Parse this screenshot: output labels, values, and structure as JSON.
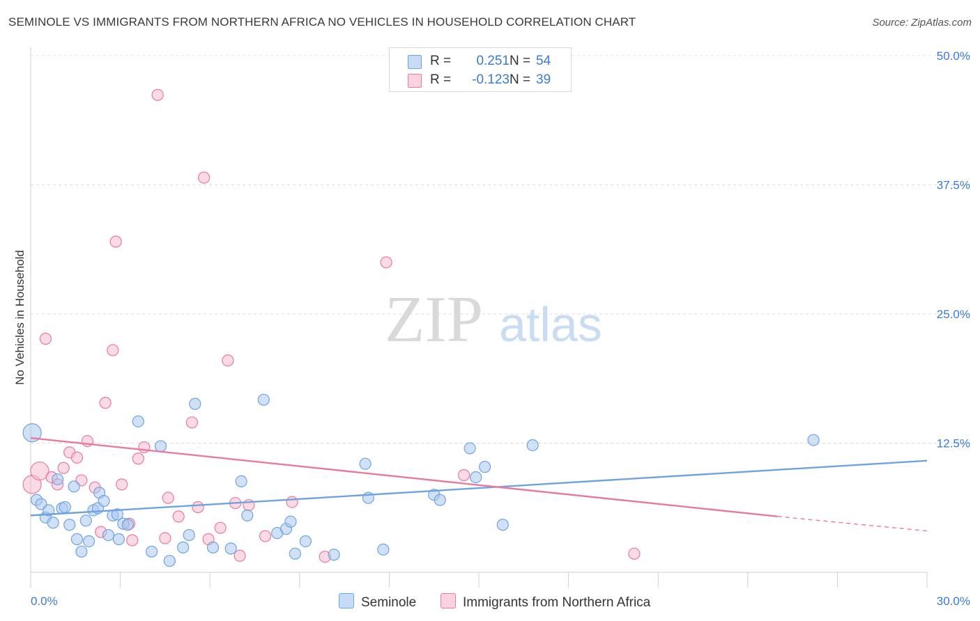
{
  "title": "SEMINOLE VS IMMIGRANTS FROM NORTHERN AFRICA NO VEHICLES IN HOUSEHOLD CORRELATION CHART",
  "source": "Source: ZipAtlas.com",
  "watermark": {
    "zip": "ZIP",
    "atlas": "atlas"
  },
  "legend": {
    "rows": [
      {
        "r_label": "R =",
        "r_value": "0.251",
        "n_label": "N =",
        "n_value": "54",
        "color": "#a9c8ef"
      },
      {
        "r_label": "R =",
        "r_value": "-0.123",
        "n_label": "N =",
        "n_value": "39",
        "color": "#f6bccd"
      }
    ]
  },
  "bottom_legend": [
    {
      "label": "Seminole",
      "color": "#a9c8ef"
    },
    {
      "label": "Immigrants from Northern Africa",
      "color": "#f6bccd"
    }
  ],
  "chart_data": {
    "type": "scatter",
    "title": "SEMINOLE VS IMMIGRANTS FROM NORTHERN AFRICA NO VEHICLES IN HOUSEHOLD CORRELATION CHART",
    "ylabel": "No Vehicles in Household",
    "xlabel": "",
    "xlim": [
      0,
      30
    ],
    "ylim": [
      0,
      50
    ],
    "x_tick_labels": [
      "0.0%",
      "30.0%"
    ],
    "y_tick_labels": [
      "12.5%",
      "25.0%",
      "37.5%",
      "50.0%"
    ],
    "y_ticks": [
      12.5,
      25.0,
      37.5,
      50.0
    ],
    "grid": true,
    "legend_position": "top-center",
    "series": [
      {
        "name": "Seminole",
        "color": "#6fa3e0",
        "fill": "#a9c8ef",
        "trend": {
          "x0": 0,
          "y0": 5.5,
          "x1": 30,
          "y1": 10.8
        },
        "points": [
          {
            "x": 0.05,
            "y": 13.5,
            "big": true
          },
          {
            "x": 0.2,
            "y": 7.0
          },
          {
            "x": 0.35,
            "y": 6.6
          },
          {
            "x": 0.5,
            "y": 5.3
          },
          {
            "x": 0.6,
            "y": 6.0
          },
          {
            "x": 0.75,
            "y": 4.8
          },
          {
            "x": 0.9,
            "y": 9.0
          },
          {
            "x": 1.05,
            "y": 6.2
          },
          {
            "x": 1.15,
            "y": 6.3
          },
          {
            "x": 1.3,
            "y": 4.6
          },
          {
            "x": 1.45,
            "y": 8.3
          },
          {
            "x": 1.55,
            "y": 3.2
          },
          {
            "x": 1.7,
            "y": 2.0
          },
          {
            "x": 1.85,
            "y": 5.0
          },
          {
            "x": 1.95,
            "y": 3.0
          },
          {
            "x": 2.1,
            "y": 6.0
          },
          {
            "x": 2.25,
            "y": 6.2
          },
          {
            "x": 2.3,
            "y": 7.7
          },
          {
            "x": 2.45,
            "y": 6.9
          },
          {
            "x": 2.6,
            "y": 3.6
          },
          {
            "x": 2.75,
            "y": 5.5
          },
          {
            "x": 2.9,
            "y": 5.6
          },
          {
            "x": 2.95,
            "y": 3.2
          },
          {
            "x": 3.1,
            "y": 4.7
          },
          {
            "x": 3.25,
            "y": 4.6
          },
          {
            "x": 3.6,
            "y": 14.6
          },
          {
            "x": 4.05,
            "y": 2.0
          },
          {
            "x": 4.35,
            "y": 12.2
          },
          {
            "x": 4.65,
            "y": 1.1
          },
          {
            "x": 5.1,
            "y": 2.4
          },
          {
            "x": 5.3,
            "y": 3.6
          },
          {
            "x": 5.5,
            "y": 16.3
          },
          {
            "x": 6.1,
            "y": 2.4
          },
          {
            "x": 6.7,
            "y": 2.3
          },
          {
            "x": 7.05,
            "y": 8.8
          },
          {
            "x": 7.25,
            "y": 5.5
          },
          {
            "x": 7.8,
            "y": 16.7
          },
          {
            "x": 8.25,
            "y": 3.8
          },
          {
            "x": 8.55,
            "y": 4.2
          },
          {
            "x": 8.7,
            "y": 4.9
          },
          {
            "x": 8.85,
            "y": 1.8
          },
          {
            "x": 9.2,
            "y": 3.0
          },
          {
            "x": 10.15,
            "y": 1.7
          },
          {
            "x": 11.2,
            "y": 10.5
          },
          {
            "x": 11.3,
            "y": 7.2
          },
          {
            "x": 11.8,
            "y": 2.2
          },
          {
            "x": 13.5,
            "y": 7.5
          },
          {
            "x": 13.7,
            "y": 7.0
          },
          {
            "x": 14.7,
            "y": 12.0
          },
          {
            "x": 14.9,
            "y": 9.2
          },
          {
            "x": 15.2,
            "y": 10.2
          },
          {
            "x": 15.8,
            "y": 4.6
          },
          {
            "x": 16.8,
            "y": 12.3
          },
          {
            "x": 26.2,
            "y": 12.8
          }
        ]
      },
      {
        "name": "Immigrants from Northern Africa",
        "color": "#e87aa0",
        "fill": "#f6bccd",
        "trend": {
          "x0": 0,
          "y0": 13.0,
          "x1": 25.0,
          "y1": 5.4
        },
        "trend_dashed": {
          "x0": 25.0,
          "y0": 5.4,
          "x1": 30,
          "y1": 4.0
        },
        "points": [
          {
            "x": 0.05,
            "y": 8.5,
            "big": true
          },
          {
            "x": 0.3,
            "y": 9.8,
            "big": true
          },
          {
            "x": 0.5,
            "y": 22.6
          },
          {
            "x": 0.7,
            "y": 9.2
          },
          {
            "x": 0.9,
            "y": 8.5
          },
          {
            "x": 1.1,
            "y": 10.1
          },
          {
            "x": 1.3,
            "y": 11.6
          },
          {
            "x": 1.55,
            "y": 11.1
          },
          {
            "x": 1.7,
            "y": 8.9
          },
          {
            "x": 1.9,
            "y": 12.7
          },
          {
            "x": 2.15,
            "y": 8.2
          },
          {
            "x": 2.35,
            "y": 3.9
          },
          {
            "x": 2.5,
            "y": 16.4
          },
          {
            "x": 2.75,
            "y": 21.5
          },
          {
            "x": 2.85,
            "y": 32.0
          },
          {
            "x": 3.05,
            "y": 8.5
          },
          {
            "x": 3.3,
            "y": 4.7
          },
          {
            "x": 3.4,
            "y": 3.1
          },
          {
            "x": 3.6,
            "y": 11.0
          },
          {
            "x": 3.8,
            "y": 12.1
          },
          {
            "x": 4.25,
            "y": 46.2
          },
          {
            "x": 4.5,
            "y": 3.3
          },
          {
            "x": 4.6,
            "y": 7.2
          },
          {
            "x": 4.95,
            "y": 5.4
          },
          {
            "x": 5.4,
            "y": 14.5
          },
          {
            "x": 5.6,
            "y": 6.3
          },
          {
            "x": 5.8,
            "y": 38.2
          },
          {
            "x": 5.95,
            "y": 3.2
          },
          {
            "x": 6.35,
            "y": 4.3
          },
          {
            "x": 6.6,
            "y": 20.5
          },
          {
            "x": 6.85,
            "y": 6.7
          },
          {
            "x": 7.0,
            "y": 1.6
          },
          {
            "x": 7.3,
            "y": 6.5
          },
          {
            "x": 7.85,
            "y": 3.5
          },
          {
            "x": 8.75,
            "y": 6.8
          },
          {
            "x": 9.85,
            "y": 1.5
          },
          {
            "x": 11.9,
            "y": 30.0
          },
          {
            "x": 14.5,
            "y": 9.4
          },
          {
            "x": 20.2,
            "y": 1.8
          }
        ]
      }
    ]
  }
}
